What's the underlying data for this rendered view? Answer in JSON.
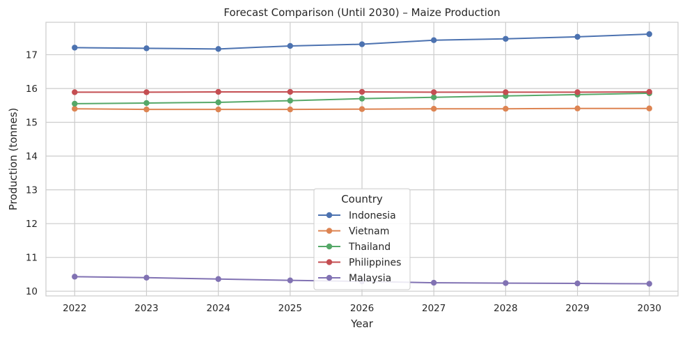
{
  "chart_data": {
    "type": "line",
    "title": "Forecast Comparison (Until 2030) – Maize Production",
    "xlabel": "Year",
    "ylabel": "Production (tonnes)",
    "x": [
      2022,
      2023,
      2024,
      2025,
      2026,
      2027,
      2028,
      2029,
      2030
    ],
    "xlim": [
      2021.6,
      2030.4
    ],
    "ylim": [
      9.86,
      17.96
    ],
    "yticks": [
      10,
      11,
      12,
      13,
      14,
      15,
      16,
      17
    ],
    "grid": true,
    "legend": {
      "title": "Country",
      "placement": "lower center"
    },
    "series": [
      {
        "name": "Indonesia",
        "color": "#4c72b0",
        "values": [
          17.21,
          17.19,
          17.17,
          17.26,
          17.31,
          17.43,
          17.47,
          17.53,
          17.61
        ]
      },
      {
        "name": "Vietnam",
        "color": "#dd8452",
        "values": [
          15.4,
          15.38,
          15.38,
          15.38,
          15.39,
          15.4,
          15.4,
          15.41,
          15.41
        ]
      },
      {
        "name": "Thailand",
        "color": "#55a868",
        "values": [
          15.55,
          15.57,
          15.59,
          15.64,
          15.7,
          15.74,
          15.78,
          15.82,
          15.86
        ]
      },
      {
        "name": "Philippines",
        "color": "#c44e52",
        "values": [
          15.89,
          15.89,
          15.9,
          15.9,
          15.9,
          15.89,
          15.89,
          15.89,
          15.9
        ]
      },
      {
        "name": "Malaysia",
        "color": "#8172b3",
        "values": [
          10.43,
          10.4,
          10.36,
          10.32,
          10.29,
          10.25,
          10.24,
          10.23,
          10.22
        ]
      }
    ]
  }
}
